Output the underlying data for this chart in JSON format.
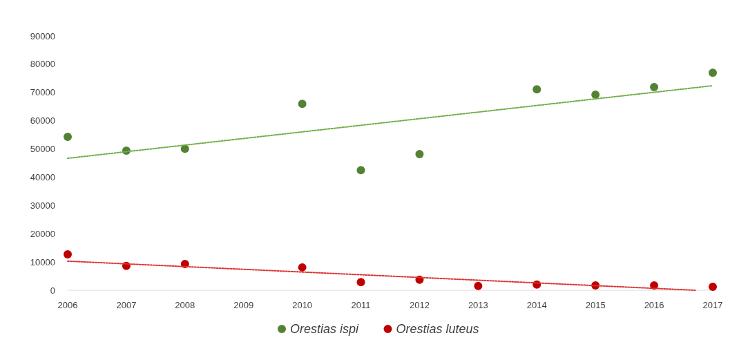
{
  "chart_data": {
    "type": "scatter",
    "xlim": [
      2006,
      2017
    ],
    "xticks": [
      2006,
      2007,
      2008,
      2009,
      2010,
      2011,
      2012,
      2013,
      2014,
      2015,
      2016,
      2017
    ],
    "ylim": [
      0,
      90000
    ],
    "yticks": [
      0,
      10000,
      20000,
      30000,
      40000,
      50000,
      60000,
      70000,
      80000,
      90000
    ],
    "grid": false,
    "legend": "bottom",
    "marker": "circle",
    "series": [
      {
        "name": "Orestias ispi",
        "color": "#548235",
        "x": [
          2006,
          2007,
          2008,
          2010,
          2011,
          2012,
          2014,
          2015,
          2016,
          2017
        ],
        "values": [
          54300,
          49400,
          50100,
          66000,
          42500,
          48200,
          71100,
          69200,
          71900,
          77000
        ]
      },
      {
        "name": "Orestias luteus",
        "color": "#c00000",
        "x": [
          2006,
          2007,
          2008,
          2010,
          2011,
          2012,
          2013,
          2014,
          2015,
          2016,
          2017
        ],
        "values": [
          12700,
          8600,
          9300,
          8100,
          2900,
          3700,
          1500,
          2000,
          1700,
          1700,
          1200
        ]
      },
      {
        "type": "line",
        "line_style": "dotted",
        "marker": "none",
        "color": "#70ad47",
        "x": [
          2006,
          2017
        ],
        "values": [
          46700,
          72400
        ]
      },
      {
        "type": "line",
        "line_style": "dotted",
        "marker": "none",
        "color": "#e03030",
        "x": [
          2006,
          2016.7
        ],
        "values": [
          10300,
          0
        ]
      }
    ]
  }
}
